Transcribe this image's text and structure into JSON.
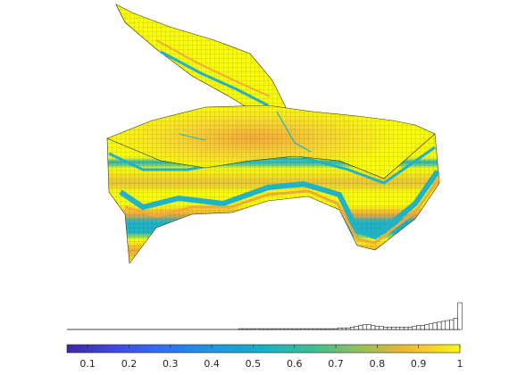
{
  "chart_data": {
    "type": "3d-grid-with-histogram",
    "colormap": "parula",
    "colors": {
      "low": "#3e26a8",
      "mid": "#1fb3c7",
      "high": "#f9fb0e",
      "orange": "#f2a93b",
      "edge": "#3a3a00",
      "hist_line": "#000000"
    },
    "colorbar": {
      "range": [
        0.05,
        1.0
      ],
      "ticks": [
        0.1,
        0.2,
        0.3,
        0.4,
        0.5,
        0.6,
        0.7,
        0.8,
        0.9,
        1.0
      ],
      "tick_labels": [
        "0.1",
        "0.2",
        "0.3",
        "0.4",
        "0.5",
        "0.6",
        "0.7",
        "0.8",
        "0.9",
        "1"
      ]
    },
    "histogram": {
      "bin_width": 0.01,
      "bin_centers": [
        0.05,
        0.06,
        0.07,
        0.08,
        0.09,
        0.1,
        0.11,
        0.12,
        0.13,
        0.14,
        0.15,
        0.16,
        0.17,
        0.18,
        0.19,
        0.2,
        0.21,
        0.22,
        0.23,
        0.24,
        0.25,
        0.26,
        0.27,
        0.28,
        0.29,
        0.3,
        0.31,
        0.32,
        0.33,
        0.34,
        0.35,
        0.36,
        0.37,
        0.38,
        0.39,
        0.4,
        0.41,
        0.42,
        0.43,
        0.44,
        0.45,
        0.46,
        0.47,
        0.48,
        0.49,
        0.5,
        0.51,
        0.52,
        0.53,
        0.54,
        0.55,
        0.56,
        0.57,
        0.58,
        0.59,
        0.6,
        0.61,
        0.62,
        0.63,
        0.64,
        0.65,
        0.66,
        0.67,
        0.68,
        0.69,
        0.7,
        0.71,
        0.72,
        0.73,
        0.74,
        0.75,
        0.76,
        0.77,
        0.78,
        0.79,
        0.8,
        0.81,
        0.82,
        0.83,
        0.84,
        0.85,
        0.86,
        0.87,
        0.88,
        0.89,
        0.9,
        0.91,
        0.92,
        0.93,
        0.94,
        0.95,
        0.96,
        0.97,
        0.98,
        0.99,
        1.0
      ],
      "counts": [
        0,
        0,
        0,
        0,
        0,
        0,
        0,
        0,
        0,
        0,
        0,
        0,
        0,
        0,
        0,
        0,
        0,
        0,
        0,
        0,
        0,
        0,
        0,
        0,
        0,
        0,
        0,
        0,
        0,
        0,
        0,
        0,
        0,
        0,
        0,
        0,
        0,
        0,
        0,
        0,
        0,
        0,
        1,
        1,
        1,
        1,
        1,
        1,
        1,
        1,
        1,
        1,
        1,
        1,
        1,
        1,
        1,
        1,
        1,
        1,
        1,
        1,
        1,
        1,
        1,
        1,
        2,
        2,
        2,
        3,
        4,
        5,
        6,
        6,
        5,
        4,
        4,
        3,
        3,
        3,
        3,
        3,
        3,
        3,
        4,
        5,
        5,
        6,
        7,
        8,
        9,
        10,
        11,
        12,
        14,
        33
      ]
    }
  }
}
